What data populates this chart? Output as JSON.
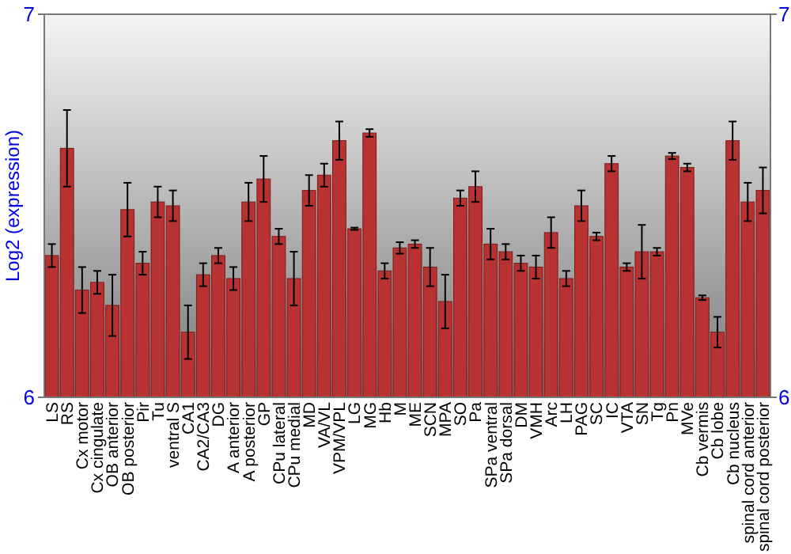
{
  "chart_data": {
    "type": "bar",
    "ylabel": "Log2 (expression)",
    "categories": [
      "LS",
      "RS",
      "Cx motor",
      "Cx cingulate",
      "OB anterior",
      "OB posterior",
      "Pir",
      "Tu",
      "ventral S",
      "CA1",
      "CA2/CA3",
      "DG",
      "A anterior",
      "A posterior",
      "GP",
      "CPu lateral",
      "CPu medial",
      "MD",
      "VA/VL",
      "VPM/VPL",
      "LG",
      "MG",
      "Hb",
      "M",
      "ME",
      "SCN",
      "MPA",
      "SO",
      "Pa",
      "SPa ventral",
      "SPa dorsal",
      "DM",
      "VMH",
      "Arc",
      "LH",
      "PAG",
      "SC",
      "IC",
      "VTA",
      "SN",
      "Tg",
      "Pn",
      "MVe",
      "Cb vermis",
      "Cb lobe",
      "Cb nucleus",
      "spinal cord anterior",
      "spinal cord posterior"
    ],
    "values": [
      6.37,
      6.65,
      6.28,
      6.3,
      6.24,
      6.49,
      6.35,
      6.51,
      6.5,
      6.17,
      6.32,
      6.37,
      6.31,
      6.51,
      6.57,
      6.42,
      6.31,
      6.54,
      6.58,
      6.67,
      6.44,
      6.69,
      6.33,
      6.39,
      6.4,
      6.34,
      6.25,
      6.52,
      6.55,
      6.4,
      6.38,
      6.35,
      6.34,
      6.43,
      6.31,
      6.5,
      6.42,
      6.61,
      6.34,
      6.38,
      6.38,
      6.63,
      6.6,
      6.26,
      6.17,
      6.67,
      6.51,
      6.54
    ],
    "errors": [
      0.03,
      0.1,
      0.06,
      0.03,
      0.08,
      0.07,
      0.03,
      0.04,
      0.04,
      0.07,
      0.03,
      0.02,
      0.03,
      0.05,
      0.06,
      0.02,
      0.07,
      0.04,
      0.03,
      0.05,
      0.003,
      0.01,
      0.02,
      0.015,
      0.01,
      0.05,
      0.07,
      0.02,
      0.04,
      0.04,
      0.02,
      0.02,
      0.03,
      0.04,
      0.02,
      0.04,
      0.01,
      0.02,
      0.01,
      0.07,
      0.01,
      0.008,
      0.01,
      0.006,
      0.04,
      0.05,
      0.05,
      0.06
    ],
    "color": "#b83232",
    "ylim": [
      6,
      7
    ],
    "yticks": [
      6,
      7
    ],
    "y2lim": [
      6,
      7
    ],
    "y2ticks": [
      6,
      7
    ]
  }
}
